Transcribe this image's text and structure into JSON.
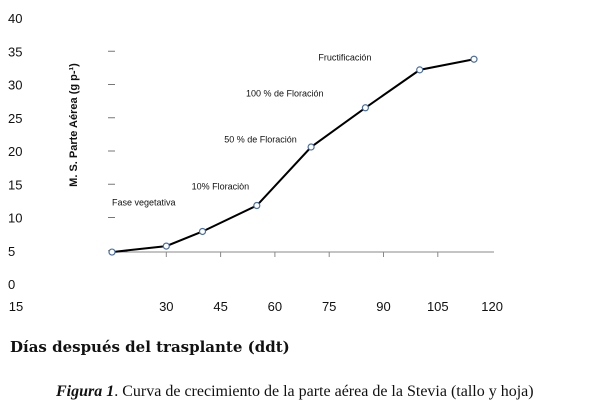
{
  "chart_data": {
    "type": "line",
    "x": [
      15,
      30,
      40,
      55,
      70,
      85,
      100,
      115
    ],
    "y": [
      4.8,
      5.7,
      7.9,
      11.8,
      20.6,
      26.5,
      32.2,
      33.8
    ],
    "ylabel": "M. S. Parte Aérea (g p-¹)",
    "xlabel": "Días después del trasplante (ddt)",
    "xlim": [
      15,
      120
    ],
    "ylim": [
      0,
      40
    ],
    "x_ticks": [
      "15",
      "30",
      "45",
      "60",
      "75",
      "90",
      "105",
      "120"
    ],
    "y_ticks": [
      "0",
      "5",
      "10",
      "15",
      "20",
      "25",
      "30",
      "35",
      "40"
    ],
    "annotations": [
      {
        "text": "Fase vegetativa",
        "x": 15,
        "y": 11.8
      },
      {
        "text": "10% Floraciòn",
        "x": 37,
        "y": 14.2
      },
      {
        "text": "50 % de Floración",
        "x": 46,
        "y": 21.3
      },
      {
        "text": "100 % de Floración",
        "x": 52,
        "y": 28.2
      },
      {
        "text": "Fructificación",
        "x": 72,
        "y": 33.6
      }
    ],
    "grid": false,
    "legend": "none"
  },
  "caption": {
    "label": "Figura 1",
    "text": ". Curva de crecimiento de la parte aérea de la Stevia (tallo y hoja)"
  }
}
